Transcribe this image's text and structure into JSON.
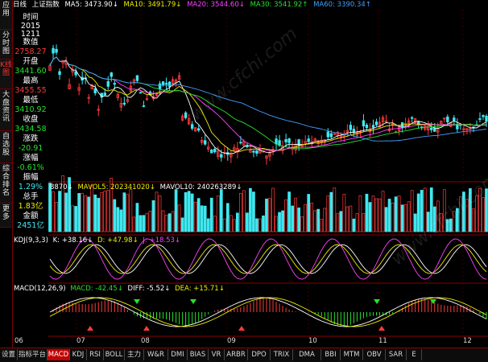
{
  "header": {
    "chart_name": "日线",
    "symbol": "上证指数",
    "ma": [
      {
        "label": "MA5:",
        "value": "3473.90",
        "dir": "↓",
        "color": "#ffffff"
      },
      {
        "label": "MA10:",
        "value": "3491.79",
        "dir": "↓",
        "color": "#f0f000"
      },
      {
        "label": "MA20:",
        "value": "3544.60",
        "dir": "↓",
        "color": "#ff40ff"
      },
      {
        "label": "MA30:",
        "value": "3541.92",
        "dir": "↑",
        "color": "#26e22a"
      },
      {
        "label": "MA60:",
        "value": "3390.34",
        "dir": "↑",
        "color": "#3fa0ff"
      }
    ]
  },
  "leftnav": [
    {
      "label": "应用",
      "active": false
    },
    {
      "label": "分时图",
      "active": false
    },
    {
      "label": "K线图",
      "active": true
    },
    {
      "label": "大盘资讯",
      "active": false
    },
    {
      "label": "自选股",
      "active": false
    },
    {
      "label": "综合排名",
      "active": false
    },
    {
      "label": "更多",
      "active": false
    }
  ],
  "info_panel": {
    "time_label": "时间",
    "year": "2015",
    "date": "1211",
    "value_label": "数值",
    "value": "2758.27",
    "open_label": "开盘",
    "open": "3441.60",
    "high_label": "最高",
    "high": "3455.55",
    "low_label": "最低",
    "low": "3410.92",
    "close_label": "收盘",
    "close": "3434.58",
    "change_label": "涨跌",
    "change": "-20.91",
    "pct_label": "涨幅",
    "pct": "-0.61%",
    "amp_label": "振幅",
    "amp": "1.29%",
    "vol_label": "总手",
    "vol": "1.83亿",
    "amt_label": "金额",
    "amt": "2451亿"
  },
  "volume_header": {
    "vol": "8870↓",
    "mavol5": "MAVOL5: 202341020↓",
    "mavol10": "MAVOL10: 240263289↓"
  },
  "kdj_header": {
    "name": "KDJ(9,3,3)",
    "k": "K: +38.16↓",
    "d": "D: +47.98↓",
    "j": "J: +18.53↓"
  },
  "macd_header": {
    "name": "MACD(12,26,9)",
    "macd": "MACD: -42.45↓",
    "diff": "DIFF: -5.52↓",
    "dea": "DEA: +15.71↓"
  },
  "months": [
    "06",
    "07",
    "08",
    "09",
    "10",
    "11",
    "12"
  ],
  "tabs": [
    "设置",
    "指标平台",
    "MACD",
    "KDJ",
    "RSI",
    "BOLL",
    "主力",
    "W&R",
    "DMI",
    "BIAS",
    "VR",
    "ARBR",
    "DPO",
    "TRIX",
    "DMA",
    "BBI",
    "MTM",
    "OBV",
    "SAR",
    "E"
  ],
  "active_tab": "MACD",
  "watermark": "www.cfchi.com",
  "colors": {
    "up": "#ff3c3c",
    "down": "#3fe8f0",
    "frame": "#8a0000",
    "bg": "#000000"
  }
}
